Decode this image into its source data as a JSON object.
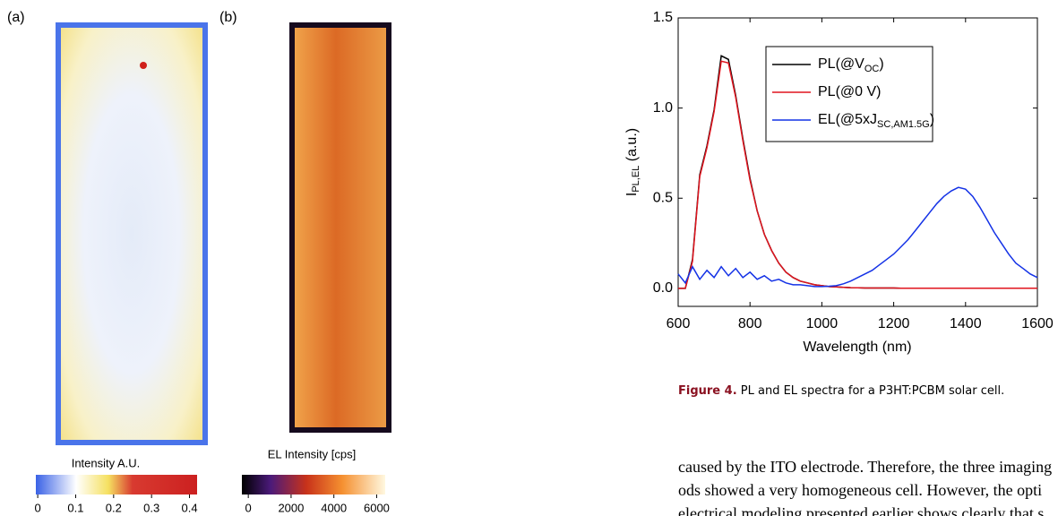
{
  "panel_a": {
    "label": "(a)",
    "colorbar": {
      "title": "Intensity A.U.",
      "lim": [
        -0.005,
        0.42
      ],
      "ticks": [
        0,
        0.1,
        0.2,
        0.3,
        0.4
      ]
    }
  },
  "panel_b": {
    "label": "(b)",
    "colorbar": {
      "title": "EL Intensity [cps]",
      "lim": [
        -300,
        6400
      ],
      "ticks": [
        0,
        2000,
        4000,
        6000
      ]
    }
  },
  "chart_data": {
    "type": "line",
    "xlabel": "Wavelength (nm)",
    "ylabel": {
      "text": "I",
      "sub": "PL,EL",
      "after": " (a.u.)"
    },
    "x": [
      600,
      620,
      640,
      660,
      680,
      700,
      720,
      740,
      760,
      780,
      800,
      820,
      840,
      860,
      880,
      900,
      920,
      940,
      960,
      980,
      1000,
      1020,
      1040,
      1060,
      1080,
      1100,
      1120,
      1140,
      1160,
      1180,
      1200,
      1220,
      1240,
      1260,
      1280,
      1300,
      1320,
      1340,
      1360,
      1380,
      1400,
      1420,
      1440,
      1460,
      1480,
      1500,
      1520,
      1540,
      1560,
      1580,
      1600
    ],
    "series": [
      {
        "name": {
          "text": "PL(@V",
          "sub": "OC",
          "after": ")"
        },
        "color": "#000000",
        "values": [
          0,
          0,
          0.16,
          0.63,
          0.79,
          0.99,
          1.29,
          1.27,
          1.07,
          0.83,
          0.61,
          0.43,
          0.3,
          0.21,
          0.14,
          0.09,
          0.06,
          0.04,
          0.03,
          0.02,
          0.015,
          0.01,
          0.008,
          0.006,
          0.004,
          0.003,
          0.002,
          0.002,
          0.002,
          0.002,
          0.002,
          0.001,
          0.001,
          0.001,
          0.001,
          0.001,
          0.001,
          0.001,
          0.001,
          0.001,
          0.001,
          0.001,
          0.001,
          0.001,
          0.001,
          0.001,
          0.001,
          0.001,
          0.001,
          0.001,
          0.001
        ]
      },
      {
        "name": {
          "text": "PL(@0 V)"
        },
        "color": "#e0141e",
        "values": [
          0,
          0,
          0.15,
          0.62,
          0.78,
          0.98,
          1.26,
          1.25,
          1.06,
          0.82,
          0.6,
          0.43,
          0.3,
          0.21,
          0.14,
          0.09,
          0.06,
          0.04,
          0.03,
          0.02,
          0.015,
          0.01,
          0.008,
          0.006,
          0.004,
          0.003,
          0.002,
          0.002,
          0.002,
          0.002,
          0.002,
          0.001,
          0.001,
          0.001,
          0.001,
          0.001,
          0.001,
          0.001,
          0.001,
          0.001,
          0.001,
          0.001,
          0.001,
          0.001,
          0.001,
          0.001,
          0.001,
          0.001,
          0.001,
          0.001,
          0.001
        ]
      },
      {
        "name": {
          "text": "EL(@5xJ",
          "sub": "SC,AM1.5G",
          "after": ")"
        },
        "color": "#1432e6",
        "values": [
          0.08,
          0.03,
          0.12,
          0.05,
          0.1,
          0.06,
          0.12,
          0.07,
          0.11,
          0.06,
          0.09,
          0.05,
          0.07,
          0.04,
          0.05,
          0.03,
          0.02,
          0.02,
          0.015,
          0.01,
          0.01,
          0.012,
          0.015,
          0.025,
          0.04,
          0.06,
          0.08,
          0.1,
          0.13,
          0.16,
          0.19,
          0.23,
          0.27,
          0.32,
          0.37,
          0.42,
          0.47,
          0.51,
          0.54,
          0.56,
          0.55,
          0.51,
          0.45,
          0.38,
          0.31,
          0.25,
          0.19,
          0.14,
          0.11,
          0.08,
          0.06
        ]
      }
    ],
    "xlim": [
      600,
      1600
    ],
    "xticks": [
      600,
      800,
      1000,
      1200,
      1400,
      1600
    ],
    "ylim": [
      -0.1,
      1.5
    ],
    "yticks": [
      {
        "value": 0,
        "label": "0.0"
      },
      0.5,
      {
        "value": 1,
        "label": "1.0"
      },
      1.5
    ],
    "legend": "upper right"
  },
  "caption": {
    "label": "Figure 4.",
    "text": " PL and EL spectra for a P3HT:PCBM solar cell."
  },
  "body": {
    "lines": [
      "caused by the ITO electrode. Therefore, the three imaging",
      "ods showed a very homogeneous cell. However, the opti",
      "electrical modeling presented earlier shows clearly that s"
    ]
  }
}
